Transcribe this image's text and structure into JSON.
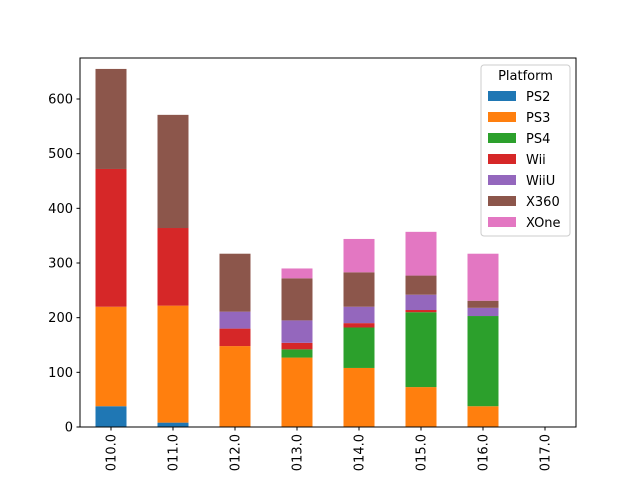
{
  "chart_data": {
    "type": "bar",
    "stacked": true,
    "categories": [
      "010.0",
      "011.0",
      "012.0",
      "013.0",
      "014.0",
      "015.0",
      "016.0",
      "017.0"
    ],
    "ylim": [
      0,
      675
    ],
    "yticks": [
      0,
      100,
      200,
      300,
      400,
      500,
      600
    ],
    "ytick_labels": [
      "0",
      "100",
      "200",
      "300",
      "400",
      "500",
      "600"
    ],
    "grid": false,
    "legend": {
      "title": "Platform",
      "placement": "top-right"
    },
    "series": [
      {
        "name": "PS2",
        "color": "#1f77b4",
        "values": [
          38,
          8,
          0,
          0,
          0,
          0,
          0,
          0
        ]
      },
      {
        "name": "PS3",
        "color": "#ff7f0e",
        "values": [
          182,
          214,
          148,
          127,
          108,
          73,
          38,
          0
        ]
      },
      {
        "name": "PS4",
        "color": "#2ca02c",
        "values": [
          0,
          0,
          0,
          15,
          74,
          137,
          165,
          0
        ]
      },
      {
        "name": "Wii",
        "color": "#d62728",
        "values": [
          252,
          142,
          32,
          12,
          8,
          4,
          0,
          0
        ]
      },
      {
        "name": "WiiU",
        "color": "#9467bd",
        "values": [
          0,
          0,
          31,
          41,
          30,
          28,
          15,
          0
        ]
      },
      {
        "name": "X360",
        "color": "#8c564b",
        "values": [
          183,
          207,
          106,
          77,
          63,
          35,
          13,
          0
        ]
      },
      {
        "name": "XOne",
        "color": "#e377c2",
        "values": [
          0,
          0,
          0,
          18,
          61,
          80,
          86,
          0
        ]
      }
    ]
  }
}
